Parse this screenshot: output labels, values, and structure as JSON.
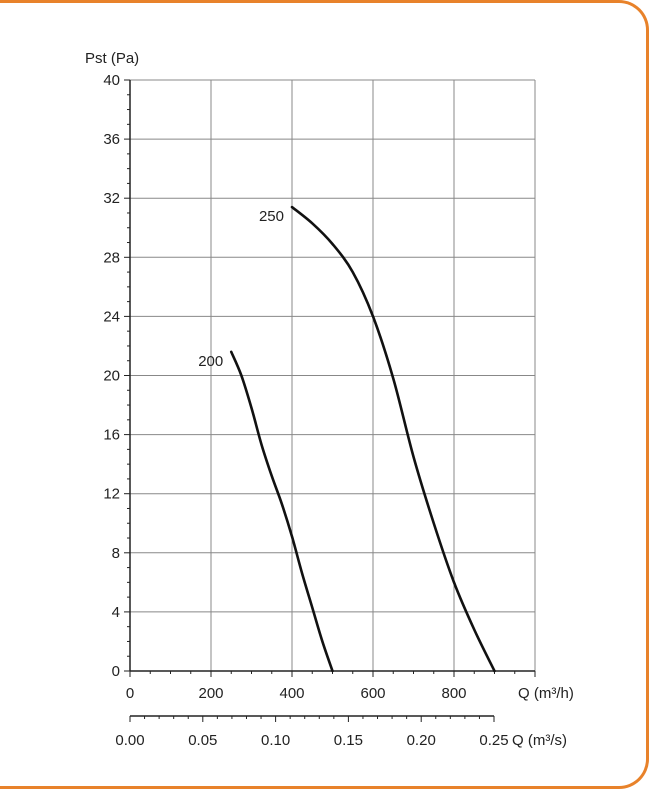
{
  "chart_data": {
    "type": "line",
    "title": "",
    "ylabel": "Pst (Pa)",
    "xlabel": "Q",
    "xlabel_unit": "(m³/h)",
    "xlabel2": "Q",
    "xlabel2_unit": "(m³/s)",
    "xlim": [
      0,
      1000
    ],
    "ylim": [
      0,
      40
    ],
    "x_ticks": [
      0,
      200,
      400,
      600,
      800
    ],
    "y_ticks": [
      0,
      4,
      8,
      12,
      16,
      20,
      24,
      28,
      32,
      36,
      40
    ],
    "x2_ticks": [
      "0.00",
      "0.05",
      "0.10",
      "0.15",
      "0.20",
      "0.25"
    ],
    "grid": true,
    "colors": {
      "line": "#111111",
      "grid": "#888888",
      "frame": "#e8822a"
    },
    "series": [
      {
        "name": "200",
        "x": [
          250,
          275,
          300,
          325,
          350,
          375,
          400,
          425,
          450,
          475,
          500
        ],
        "y": [
          21.6,
          20.0,
          17.8,
          15.3,
          13.2,
          11.3,
          9.1,
          6.6,
          4.3,
          2.0,
          0.0
        ]
      },
      {
        "name": "250",
        "x": [
          400,
          450,
          500,
          550,
          600,
          650,
          700,
          750,
          800,
          850,
          900
        ],
        "y": [
          31.4,
          30.3,
          28.9,
          27.0,
          24.0,
          19.8,
          14.5,
          10.0,
          6.0,
          2.8,
          0.0
        ]
      }
    ]
  }
}
